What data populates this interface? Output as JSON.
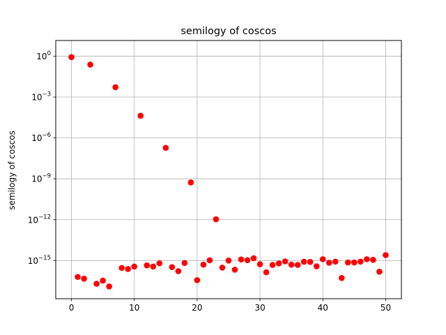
{
  "chart_data": {
    "type": "scatter",
    "title": "semilogy of coscos",
    "xlabel": "",
    "ylabel": "semilogy of coscos",
    "yscale": "log",
    "grid": true,
    "xlim": [
      -2.5,
      52.5
    ],
    "ylim_log10": [
      -17.8,
      1.15
    ],
    "xticks": [
      0,
      10,
      20,
      30,
      40,
      50
    ],
    "xtick_labels": [
      "0",
      "10",
      "20",
      "30",
      "40",
      "50"
    ],
    "yticks_log10": [
      0,
      -3,
      -6,
      -9,
      -12,
      -15
    ],
    "ytick_labels": [
      {
        "base": "10",
        "exp": "0"
      },
      {
        "base": "10",
        "exp": "−3"
      },
      {
        "base": "10",
        "exp": "−6"
      },
      {
        "base": "10",
        "exp": "−9"
      },
      {
        "base": "10",
        "exp": "−12"
      },
      {
        "base": "10",
        "exp": "−15"
      }
    ],
    "marker_color": "#ff0000",
    "series": [
      {
        "x": [
          0,
          1,
          2,
          3,
          4,
          5,
          6,
          7,
          8,
          9,
          10,
          11,
          12,
          13,
          14,
          15,
          16,
          17,
          18,
          19,
          20,
          21,
          22,
          23,
          24,
          25,
          26,
          27,
          28,
          29,
          30,
          31,
          32,
          33,
          34,
          35,
          36,
          37,
          38,
          39,
          40,
          41,
          42,
          43,
          44,
          45,
          46,
          47,
          48,
          49,
          50
        ],
        "y_log10": [
          -0.07,
          -16.2,
          -16.33,
          -0.62,
          -16.7,
          -16.47,
          -16.9,
          -2.28,
          -15.54,
          -15.62,
          -15.44,
          -4.37,
          -15.35,
          -15.44,
          -15.2,
          -6.73,
          -15.48,
          -15.78,
          -15.18,
          -9.27,
          -16.44,
          -15.3,
          -14.98,
          -11.97,
          -15.52,
          -15.0,
          -15.67,
          -14.92,
          -14.97,
          -14.83,
          -15.27,
          -15.86,
          -15.32,
          -15.21,
          -15.06,
          -15.3,
          -15.32,
          -15.09,
          -15.1,
          -15.42,
          -14.9,
          -15.16,
          -15.08,
          -16.28,
          -15.14,
          -15.14,
          -15.08,
          -14.9,
          -14.95,
          -15.82,
          -14.6
        ]
      }
    ]
  }
}
